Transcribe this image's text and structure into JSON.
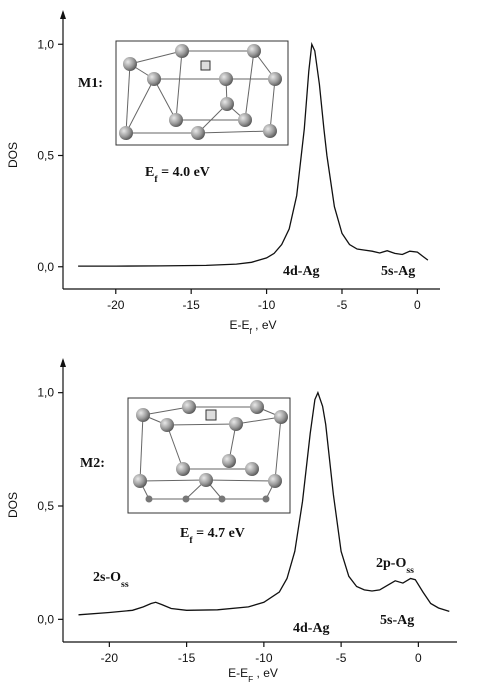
{
  "chart_data": [
    {
      "type": "line",
      "y_label": "DOS",
      "x_label": {
        "text": "E-E",
        "sub": "f",
        "tail": " , eV"
      },
      "x": [
        -22.5,
        -20,
        -17,
        -14,
        -12,
        -11,
        -10,
        -9.5,
        -9,
        -8.5,
        -8,
        -7.5,
        -7.2,
        -7,
        -6.8,
        -6.5,
        -6.2,
        -6,
        -5.5,
        -5,
        -4.5,
        -4,
        -3.5,
        -3,
        -2.5,
        -2,
        -1.5,
        -1,
        -0.5,
        0,
        0.3,
        0.7
      ],
      "values": [
        0.003,
        0.003,
        0.004,
        0.006,
        0.012,
        0.02,
        0.04,
        0.06,
        0.1,
        0.17,
        0.32,
        0.62,
        0.88,
        1.0,
        0.97,
        0.82,
        0.62,
        0.5,
        0.27,
        0.15,
        0.1,
        0.08,
        0.075,
        0.07,
        0.062,
        0.072,
        0.06,
        0.055,
        0.07,
        0.066,
        0.05,
        0.03
      ],
      "xlim": [
        -23.5,
        1.5
      ],
      "ylim": [
        -0.1,
        1.1
      ],
      "xticks": [
        -20,
        -15,
        -10,
        -5,
        0
      ],
      "yticks": [
        {
          "value": 0,
          "label": "0,0"
        },
        {
          "value": 0.5,
          "label": "0,5"
        },
        {
          "value": 1,
          "label": "1,0"
        }
      ],
      "annotations": [
        {
          "text": "M1:"
        },
        {
          "text": "E",
          "sub": "f",
          "tail": " = 4.0 eV"
        },
        {
          "text": "4d-Ag"
        },
        {
          "text": "5s-Ag"
        }
      ]
    },
    {
      "type": "line",
      "y_label": "DOS",
      "x_label": {
        "text": "E-E",
        "sub": "F",
        "tail": " , eV"
      },
      "x": [
        -22,
        -20,
        -18.5,
        -17.8,
        -17.3,
        -17,
        -16.6,
        -16,
        -15,
        -13,
        -11,
        -10,
        -9,
        -8.5,
        -8,
        -7.5,
        -7,
        -6.7,
        -6.5,
        -6.2,
        -6,
        -5.5,
        -5,
        -4.5,
        -4,
        -3.5,
        -3,
        -2.5,
        -2,
        -1.5,
        -1,
        -0.5,
        -0.2,
        0.3,
        0.8,
        1.3,
        2
      ],
      "values": [
        0.02,
        0.03,
        0.04,
        0.055,
        0.07,
        0.075,
        0.065,
        0.048,
        0.04,
        0.042,
        0.055,
        0.075,
        0.12,
        0.18,
        0.3,
        0.52,
        0.82,
        0.97,
        1.0,
        0.94,
        0.86,
        0.55,
        0.3,
        0.19,
        0.145,
        0.13,
        0.125,
        0.13,
        0.15,
        0.17,
        0.16,
        0.18,
        0.175,
        0.12,
        0.07,
        0.05,
        0.035
      ],
      "xlim": [
        -23,
        2.5
      ],
      "ylim": [
        -0.1,
        1.1
      ],
      "xticks": [
        -20,
        -15,
        -10,
        -5,
        0
      ],
      "yticks": [
        {
          "value": 0,
          "label": "0,0"
        },
        {
          "value": 0.5,
          "label": "0,5"
        },
        {
          "value": 1,
          "label": "1,0"
        }
      ],
      "annotations": [
        {
          "text": "M2:"
        },
        {
          "text": "E",
          "sub": "f",
          "tail": " = 4.7 eV"
        },
        {
          "text": "2s-O",
          "sub": "ss"
        },
        {
          "text": "4d-Ag"
        },
        {
          "text": "2p-O",
          "sub": "ss"
        },
        {
          "text": "5s-Ag"
        }
      ]
    }
  ]
}
